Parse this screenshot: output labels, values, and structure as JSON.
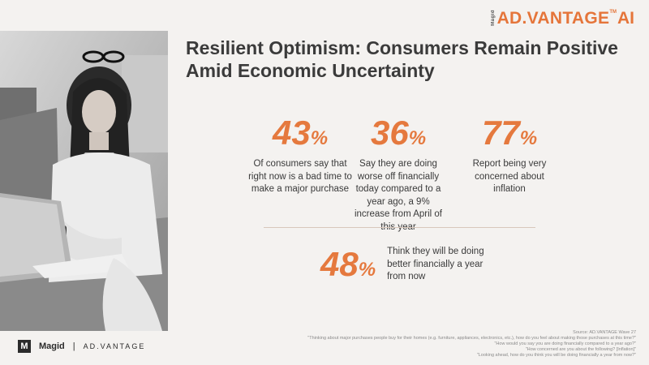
{
  "logo": {
    "prefix": "Magid",
    "name": "AD.VANTAGE",
    "tm": "TM",
    "suffix": "AI"
  },
  "title": "Resilient Optimism: Consumers Remain Positive Amid Economic Uncertainty",
  "stats": [
    {
      "value": "43",
      "unit": "%",
      "desc": "Of consumers say that right now is a bad time to make a major purchase"
    },
    {
      "value": "36",
      "unit": "%",
      "desc": "Say they are doing worse off financially today compared to a year ago, a 9% increase from April of this year"
    },
    {
      "value": "77",
      "unit": "%",
      "desc": "Report being very concerned about inflation"
    },
    {
      "value": "48",
      "unit": "%",
      "desc": "Think they will be doing better financially a year from now"
    }
  ],
  "footer": {
    "mark": "M",
    "brand": "Magid",
    "separator": "|",
    "product": "AD.VANTAGE"
  },
  "sources": [
    "Source: AD.VANTAGE Wave 27",
    "\"Thinking about major purchases people buy for their homes (e.g. furniture, appliances, electronics, etc.), how do you feel about making those purchases at this time?\"",
    "\"How would you say you are doing financially compared to a year ago?\"",
    "\"How concerned are you about the following? [Inflation]\"",
    "\"Looking ahead, how do you think you will be doing financially a year from now?\""
  ],
  "colors": {
    "accent": "#e5793e",
    "background": "#f4f2f0",
    "text": "#3a3a3a"
  }
}
